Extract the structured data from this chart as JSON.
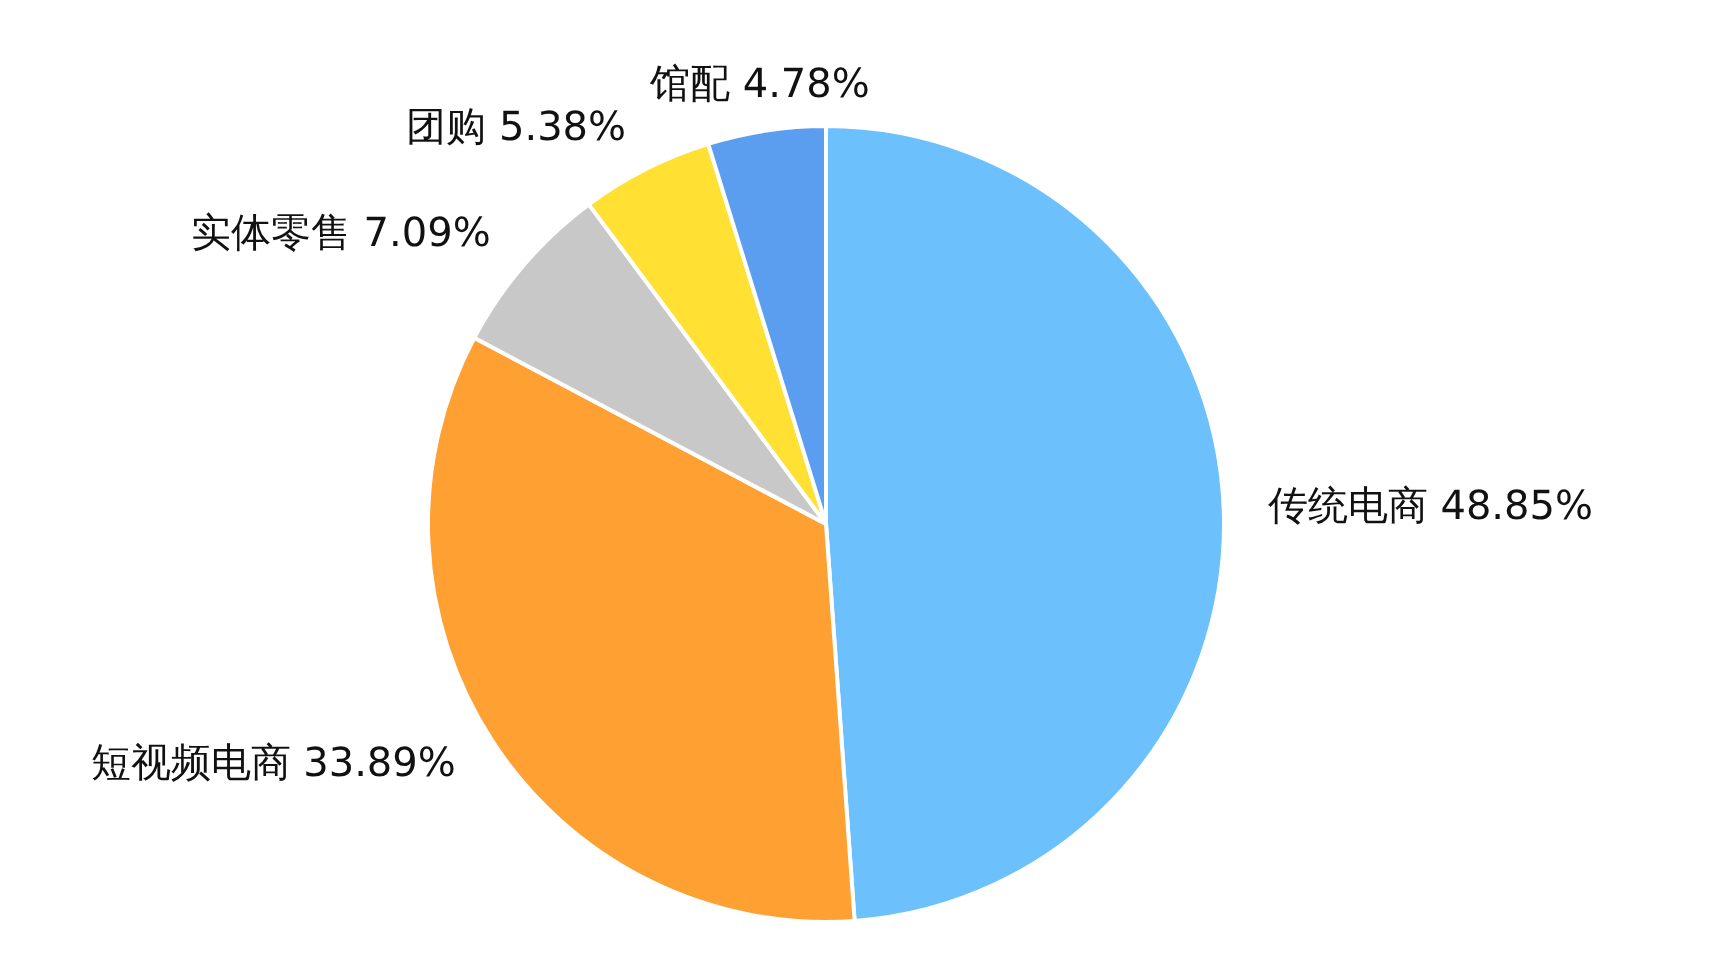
{
  "chart_data": {
    "type": "pie",
    "categories": [
      "传统电商",
      "短视频电商",
      "实体零售",
      "团购",
      "馆配"
    ],
    "values": [
      48.85,
      33.89,
      7.09,
      5.38,
      4.78
    ],
    "value_labels": [
      "48.85%",
      "33.89%",
      "7.09%",
      "5.38%",
      "4.78%"
    ],
    "colors": [
      "#6cc0fc",
      "#ffa033",
      "#c8c8c8",
      "#ffe033",
      "#5b9ef0"
    ],
    "legend": false
  }
}
